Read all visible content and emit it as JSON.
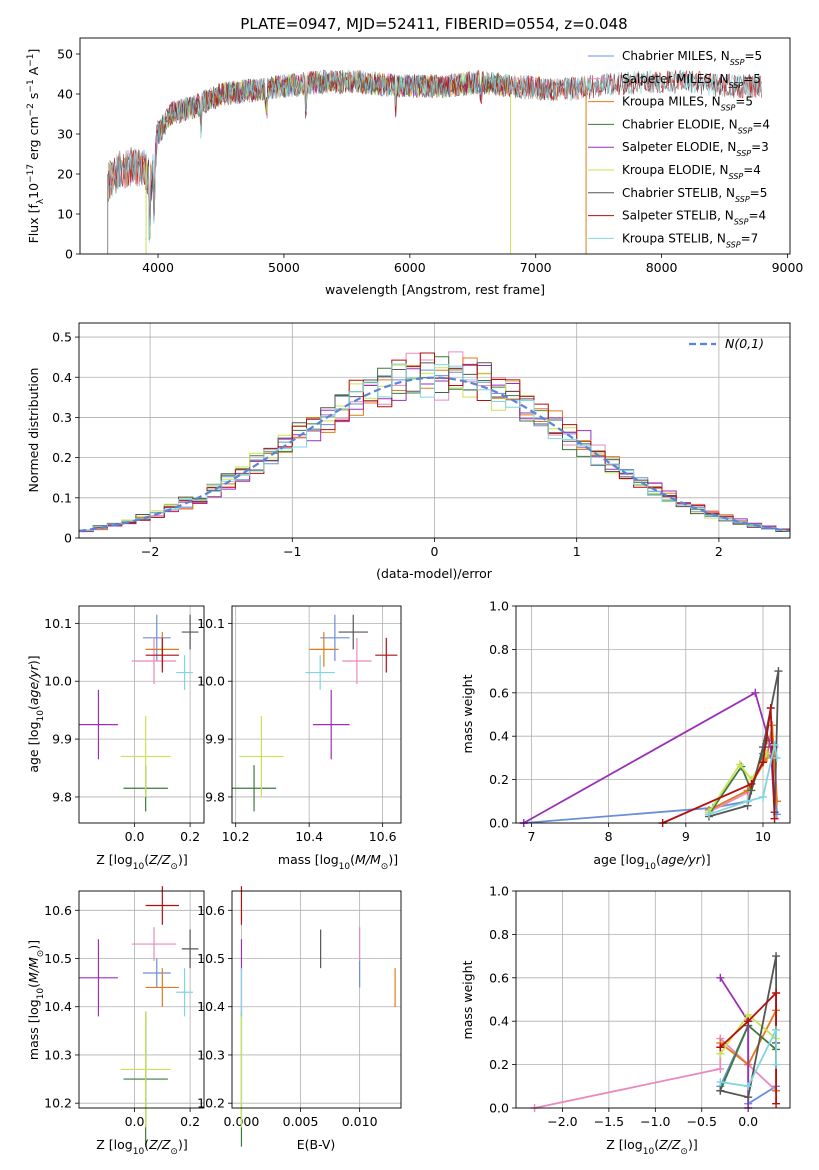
{
  "figure": {
    "title": "PLATE=0947, MJD=52411, FIBERID=0554, z=0.048"
  },
  "colors": {
    "chabrier_miles": "#6a8fd8",
    "salpeter_miles": "#e889bf",
    "kroupa_miles": "#e07b1a",
    "chabrier_elodie": "#3c7a3c",
    "salpeter_elodie": "#9b30b5",
    "kroupa_elodie": "#c9e356",
    "chabrier_stelib": "#555555",
    "salpeter_stelib": "#b30f0f",
    "kroupa_stelib": "#7fd6de",
    "normal_curve": "#5b84d6",
    "grid": "#b0b0b0"
  },
  "chart_data": [
    {
      "id": "spectrum",
      "type": "line",
      "xlabel": "wavelength [Angstrom, rest frame]",
      "ylabel": "Flux [f_λ10^-17 erg cm^-2 s^-1 A^-1]",
      "xlim": [
        3380,
        9020
      ],
      "ylim": [
        0,
        54
      ],
      "xticks": [
        4000,
        5000,
        6000,
        7000,
        8000,
        9000
      ],
      "yticks": [
        0,
        10,
        20,
        30,
        40,
        50
      ],
      "grid": false,
      "legend_position": "upper-right",
      "x_range": [
        3600,
        8800
      ],
      "continuum": [
        [
          3600,
          18
        ],
        [
          3700,
          21
        ],
        [
          3800,
          22
        ],
        [
          3900,
          21
        ],
        [
          3950,
          18
        ],
        [
          4000,
          30
        ],
        [
          4100,
          35
        ],
        [
          4300,
          37
        ],
        [
          4500,
          40
        ],
        [
          4800,
          41
        ],
        [
          5000,
          42
        ],
        [
          5300,
          43
        ],
        [
          5600,
          43
        ],
        [
          5900,
          42
        ],
        [
          6300,
          42
        ],
        [
          6560,
          43
        ],
        [
          6800,
          42
        ],
        [
          7200,
          41
        ],
        [
          7500,
          42
        ],
        [
          7800,
          43
        ],
        [
          8200,
          43
        ],
        [
          8500,
          42
        ],
        [
          8800,
          42
        ]
      ],
      "absorption_dips": [
        [
          3934,
          12
        ],
        [
          3968,
          10
        ],
        [
          4340,
          6
        ],
        [
          4861,
          5
        ],
        [
          5175,
          6
        ],
        [
          5890,
          5
        ],
        [
          6563,
          3
        ]
      ],
      "series": [
        {
          "name": "Chabrier MILES",
          "nssp": "5",
          "key": "chabrier_miles",
          "range": [
            3600,
            7400
          ]
        },
        {
          "name": "Salpeter MILES",
          "nssp": "5",
          "key": "salpeter_miles",
          "range": [
            3600,
            7400
          ]
        },
        {
          "name": "Kroupa MILES",
          "nssp": "5",
          "key": "kroupa_miles",
          "range": [
            3600,
            7400
          ]
        },
        {
          "name": "Chabrier ELODIE",
          "nssp": "4",
          "key": "chabrier_elodie",
          "range": [
            3900,
            6800
          ]
        },
        {
          "name": "Salpeter ELODIE",
          "nssp": "3",
          "key": "salpeter_elodie",
          "range": [
            3900,
            6800
          ]
        },
        {
          "name": "Kroupa ELODIE",
          "nssp": "4",
          "key": "kroupa_elodie",
          "range": [
            3900,
            6800
          ]
        },
        {
          "name": "Chabrier STELIB",
          "nssp": "5",
          "key": "chabrier_stelib",
          "range": [
            3600,
            8800
          ]
        },
        {
          "name": "Salpeter STELIB",
          "nssp": "4",
          "key": "salpeter_stelib",
          "range": [
            3600,
            8800
          ]
        },
        {
          "name": "Kroupa STELIB",
          "nssp": "7",
          "key": "kroupa_stelib",
          "range": [
            3600,
            8800
          ]
        }
      ]
    },
    {
      "id": "residuals",
      "type": "bar",
      "histtype": "step",
      "xlabel": "(data-model)/error",
      "ylabel": "Normed distribution",
      "xlim": [
        -2.5,
        2.5
      ],
      "ylim": [
        0,
        0.535
      ],
      "xticks": [
        -2,
        -1,
        0,
        1,
        2
      ],
      "yticks": [
        0.0,
        0.1,
        0.2,
        0.3,
        0.4,
        0.5
      ],
      "grid": true,
      "bin_width": 0.1,
      "legend": {
        "label": "N(0,1)",
        "position": "upper-right"
      },
      "series": [
        {
          "key": "chabrier_miles",
          "shift": 0.0
        },
        {
          "key": "salpeter_miles",
          "shift": 0.02
        },
        {
          "key": "kroupa_miles",
          "shift": 0.03
        },
        {
          "key": "chabrier_elodie",
          "shift": -0.02
        },
        {
          "key": "salpeter_elodie",
          "shift": 0.04
        },
        {
          "key": "kroupa_elodie",
          "shift": -0.03
        },
        {
          "key": "chabrier_stelib",
          "shift": -0.04
        },
        {
          "key": "salpeter_stelib",
          "shift": 0.01
        },
        {
          "key": "kroupa_stelib",
          "shift": -0.01
        }
      ]
    },
    {
      "id": "z_vs_age",
      "type": "scatter",
      "xlabel": "Z [log10(Z/Z⊙)]",
      "ylabel": "age [log10(age/yr)]",
      "xlim": [
        -0.2,
        0.25
      ],
      "ylim": [
        9.755,
        10.13
      ],
      "xticks": [
        "0.0",
        "0.2"
      ],
      "yticks": [
        "9.8",
        "9.9",
        "10.0",
        "10.1"
      ],
      "grid": true
    },
    {
      "id": "mass_vs_age",
      "type": "scatter",
      "xlabel": "mass [log10(M/M⊙)]",
      "ylabel": "",
      "xlim": [
        10.19,
        10.65
      ],
      "ylim": [
        9.755,
        10.13
      ],
      "xticks": [
        "10.2",
        "10.4",
        "10.6"
      ],
      "yticks": [
        "9.8",
        "9.9",
        "10.0",
        "10.1"
      ],
      "grid": true
    },
    {
      "id": "age_vs_weight",
      "type": "line",
      "xlabel": "age [log10(age/yr)]",
      "ylabel": "mass weight",
      "xlim": [
        6.8,
        10.35
      ],
      "ylim": [
        0,
        1.0
      ],
      "xticks": [
        "7",
        "8",
        "9",
        "10"
      ],
      "yticks": [
        "0.0",
        "0.2",
        "0.4",
        "0.6",
        "0.8",
        "1.0"
      ],
      "grid": true,
      "series": [
        {
          "key": "chabrier_miles",
          "points": [
            [
              6.9,
              0.0
            ],
            [
              9.35,
              0.07
            ],
            [
              9.8,
              0.1
            ],
            [
              10.0,
              0.32
            ],
            [
              10.15,
              0.3
            ],
            [
              10.18,
              0.04
            ]
          ]
        },
        {
          "key": "salpeter_miles",
          "points": [
            [
              9.3,
              0.05
            ],
            [
              9.8,
              0.14
            ],
            [
              10.0,
              0.28
            ],
            [
              10.15,
              0.35
            ],
            [
              10.18,
              0.1
            ]
          ]
        },
        {
          "key": "kroupa_miles",
          "points": [
            [
              9.3,
              0.06
            ],
            [
              9.8,
              0.15
            ],
            [
              10.05,
              0.3
            ],
            [
              10.12,
              0.45
            ],
            [
              10.18,
              0.1
            ]
          ]
        },
        {
          "key": "chabrier_elodie",
          "points": [
            [
              9.3,
              0.04
            ],
            [
              9.72,
              0.26
            ],
            [
              9.85,
              0.15
            ],
            [
              10.05,
              0.38
            ]
          ]
        },
        {
          "key": "salpeter_elodie",
          "points": [
            [
              6.9,
              0.0
            ],
            [
              9.9,
              0.6
            ],
            [
              10.1,
              0.35
            ],
            [
              10.15,
              0.05
            ]
          ]
        },
        {
          "key": "kroupa_elodie",
          "points": [
            [
              9.3,
              0.05
            ],
            [
              9.7,
              0.27
            ],
            [
              9.85,
              0.2
            ],
            [
              10.05,
              0.32
            ]
          ]
        },
        {
          "key": "chabrier_stelib",
          "points": [
            [
              9.3,
              0.03
            ],
            [
              9.8,
              0.08
            ],
            [
              10.0,
              0.35
            ],
            [
              10.2,
              0.7
            ],
            [
              10.15,
              0.05
            ]
          ]
        },
        {
          "key": "salpeter_stelib",
          "points": [
            [
              8.7,
              0.0
            ],
            [
              9.85,
              0.18
            ],
            [
              10.0,
              0.28
            ],
            [
              10.1,
              0.53
            ],
            [
              10.15,
              0.02
            ]
          ]
        },
        {
          "key": "kroupa_stelib",
          "points": [
            [
              9.3,
              0.04
            ],
            [
              9.8,
              0.1
            ],
            [
              10.0,
              0.12
            ],
            [
              10.15,
              0.36
            ],
            [
              10.18,
              0.3
            ]
          ]
        }
      ]
    },
    {
      "id": "z_vs_mass",
      "type": "scatter",
      "xlabel": "Z [log10(Z/Z⊙)]",
      "ylabel": "mass [log10(M/M⊙)]",
      "xlim": [
        -0.2,
        0.25
      ],
      "ylim": [
        10.19,
        10.64
      ],
      "xticks": [
        "0.0",
        "0.2"
      ],
      "yticks": [
        "10.2",
        "10.3",
        "10.4",
        "10.5",
        "10.6"
      ],
      "grid": true
    },
    {
      "id": "ebv_vs_mass",
      "type": "scatter",
      "xlabel": "E(B-V)",
      "ylabel": "",
      "xlim": [
        -0.0008,
        0.0135
      ],
      "ylim": [
        10.19,
        10.64
      ],
      "xticks": [
        "0.000",
        "0.005",
        "0.010"
      ],
      "yticks": [
        "10.2",
        "10.3",
        "10.4",
        "10.5",
        "10.6"
      ],
      "grid": true
    },
    {
      "id": "z_vs_weight",
      "type": "line",
      "xlabel": "Z [log10(Z/Z⊙)]",
      "ylabel": "mass weight",
      "xlim": [
        -2.5,
        0.45
      ],
      "ylim": [
        0,
        1.0
      ],
      "xticks": [
        "−2.0",
        "−1.5",
        "−1.0",
        "−0.5",
        "0.0"
      ],
      "yticks": [
        "0.0",
        "0.2",
        "0.4",
        "0.6",
        "0.8",
        "1.0"
      ],
      "grid": true,
      "series": [
        {
          "key": "chabrier_miles",
          "points": [
            [
              -0.3,
              0.1
            ],
            [
              0.0,
              0.38
            ],
            [
              0.0,
              0.02
            ],
            [
              0.3,
              0.1
            ]
          ]
        },
        {
          "key": "salpeter_miles",
          "points": [
            [
              -2.3,
              0.0
            ],
            [
              -0.3,
              0.18
            ],
            [
              -0.3,
              0.32
            ],
            [
              0.0,
              0.2
            ],
            [
              0.3,
              0.08
            ]
          ]
        },
        {
          "key": "kroupa_miles",
          "points": [
            [
              -0.3,
              0.3
            ],
            [
              0.0,
              0.2
            ],
            [
              0.3,
              0.45
            ],
            [
              0.3,
              0.08
            ]
          ]
        },
        {
          "key": "chabrier_elodie",
          "points": [
            [
              -0.3,
              0.08
            ],
            [
              0.0,
              0.38
            ],
            [
              0.3,
              0.27
            ]
          ]
        },
        {
          "key": "salpeter_elodie",
          "points": [
            [
              -0.3,
              0.6
            ],
            [
              0.0,
              0.4
            ],
            [
              0.0,
              0.0
            ]
          ]
        },
        {
          "key": "kroupa_elodie",
          "points": [
            [
              -0.3,
              0.25
            ],
            [
              0.0,
              0.43
            ],
            [
              0.3,
              0.32
            ]
          ]
        },
        {
          "key": "chabrier_stelib",
          "points": [
            [
              -0.3,
              0.08
            ],
            [
              0.0,
              0.05
            ],
            [
              0.3,
              0.7
            ],
            [
              0.3,
              0.3
            ]
          ]
        },
        {
          "key": "salpeter_stelib",
          "points": [
            [
              -0.3,
              0.28
            ],
            [
              0.0,
              0.4
            ],
            [
              0.3,
              0.53
            ],
            [
              0.3,
              0.02
            ]
          ]
        },
        {
          "key": "kroupa_stelib",
          "points": [
            [
              -0.3,
              0.12
            ],
            [
              0.0,
              0.1
            ],
            [
              0.3,
              0.36
            ],
            [
              0.3,
              0.2
            ]
          ]
        }
      ]
    }
  ],
  "fit_results": {
    "note_keys": [
      "chabrier_miles",
      "salpeter_miles",
      "kroupa_miles",
      "chabrier_elodie",
      "salpeter_elodie",
      "kroupa_elodie",
      "chabrier_stelib",
      "salpeter_stelib",
      "kroupa_stelib"
    ],
    "Z": [
      0.08,
      0.07,
      0.1,
      0.04,
      -0.13,
      0.04,
      0.2,
      0.1,
      0.18
    ],
    "Z_err": [
      0.05,
      0.08,
      0.06,
      0.08,
      0.07,
      0.09,
      0.03,
      0.06,
      0.03
    ],
    "age": [
      10.075,
      10.035,
      10.055,
      9.815,
      9.925,
      9.87,
      10.085,
      10.045,
      10.015
    ],
    "age_err": [
      0.04,
      0.04,
      0.03,
      0.04,
      0.06,
      0.07,
      0.03,
      0.03,
      0.03
    ],
    "mass": [
      10.47,
      10.53,
      10.44,
      10.25,
      10.46,
      10.27,
      10.52,
      10.61,
      10.43
    ],
    "mass_err": [
      0.03,
      0.035,
      0.04,
      0.14,
      0.08,
      0.12,
      0.04,
      0.04,
      0.05
    ],
    "ebv": [
      0.01,
      0.01,
      0.013,
      0.0,
      0.0,
      0.0,
      0.0067,
      0.0,
      0.0
    ],
    "mass_x_err": [
      0.04,
      0.04,
      0.04,
      0.06,
      0.05,
      0.06,
      0.04,
      0.03,
      0.04
    ]
  }
}
